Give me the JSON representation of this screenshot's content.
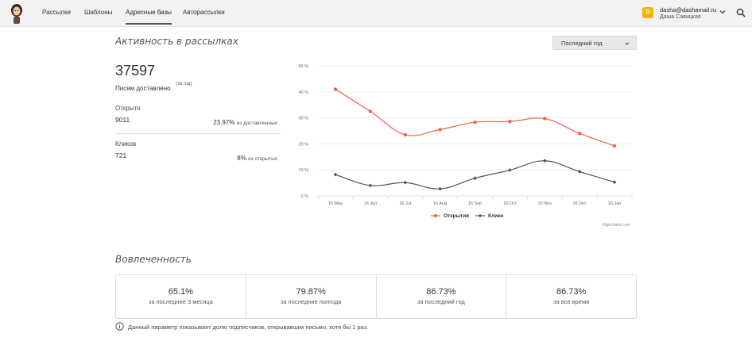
{
  "nav": {
    "items": [
      {
        "label": "Рассылки"
      },
      {
        "label": "Шаблоны"
      },
      {
        "label": "Адресные базы"
      },
      {
        "label": "Авторассылки"
      }
    ],
    "active_index": 2
  },
  "user": {
    "badge": "D",
    "email": "dasha@dashamail.ru",
    "name": "Даша Савицкая",
    "badge_color": "#f5b400"
  },
  "activity": {
    "title": "Активность в рассылках",
    "period": "Последний год",
    "delivered_count": "37597",
    "delivered_label": "Писем доставлено",
    "delivered_note": "(за год)",
    "opened_label": "Открыто",
    "opened_value": "9011",
    "opened_pct": "23.97%",
    "opened_pct_note": "из доставленных",
    "clicks_label": "Кликов",
    "clicks_value": "721",
    "clicks_pct": "8%",
    "clicks_pct_note": "из открытых"
  },
  "chart_data": {
    "type": "line",
    "categories": [
      "16 May",
      "16 Jun",
      "16 Jul",
      "16 Aug",
      "16 Sep",
      "16 Oct",
      "16 Nov",
      "16 Dec",
      "16 Jan"
    ],
    "y_ticks": [
      "0 %",
      "10 %",
      "20 %",
      "30 %",
      "40 %",
      "50 %"
    ],
    "ylim": [
      0,
      50
    ],
    "series": [
      {
        "name": "Открытия",
        "color": "#f0644b",
        "values": [
          41,
          32.5,
          23.5,
          25.5,
          28.3,
          28.6,
          29.7,
          24,
          19.2
        ]
      },
      {
        "name": "Клики",
        "color": "#555555",
        "values": [
          8.2,
          4,
          5.1,
          2.7,
          6.8,
          9.9,
          13.5,
          9.3,
          5.3
        ]
      }
    ],
    "legend_position": "bottom-center",
    "grid": true,
    "credits": "Highcharts.com"
  },
  "engagement": {
    "title": "Вовлеченность",
    "cells": [
      {
        "value": "65.1%",
        "label": "за последние 3 месяца"
      },
      {
        "value": "79.87%",
        "label": "за последние полгода"
      },
      {
        "value": "86.73%",
        "label": "за последний год"
      },
      {
        "value": "86.73%",
        "label": "за все время"
      }
    ],
    "info": "Данный параметр показывает долю подписчиков, открывавших письмо, хотя бы 1 раз."
  }
}
